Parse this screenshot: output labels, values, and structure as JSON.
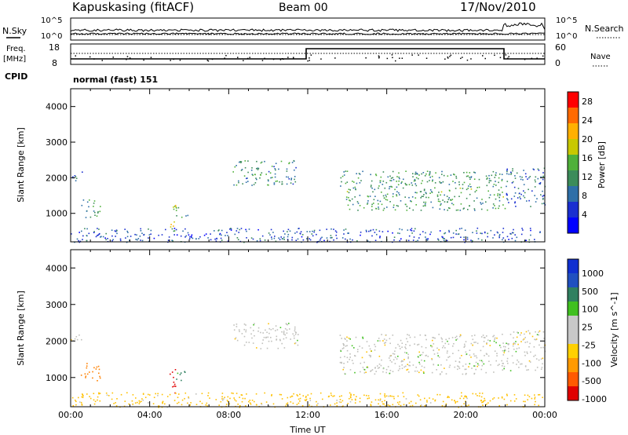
{
  "header": {
    "station": "Kapuskasing (fitACF)",
    "beam": "Beam 00",
    "date": "17/Nov/2010"
  },
  "status_panel": {
    "nsky_label": "N.Sky",
    "nsky_ticks": [
      "10^5",
      "10^0"
    ],
    "nsearch_label": "N.Search",
    "nsearch_ticks": [
      "10^5",
      "10^0"
    ],
    "freq_label": "Freq.",
    "freq_unit": "[MHz]",
    "freq_ticks": [
      "18",
      "8"
    ],
    "nave_label": "Nave",
    "nave_ticks": [
      "60",
      "0"
    ],
    "cpid_label": "CPID",
    "cpid_value": "normal (fast) 151"
  },
  "colors": {
    "power_scale": [
      "#0000ff",
      "#1a2fd0",
      "#2e6fa8",
      "#3c8c5a",
      "#4fb03a",
      "#c8c800",
      "#ffb000",
      "#ff6a00",
      "#ff0000"
    ],
    "velocity_scale": [
      "#e00000",
      "#ff5a00",
      "#ff9a00",
      "#ffd000",
      "#c8c8c8",
      "#c8c8c8",
      "#40c020",
      "#308060",
      "#2050c0",
      "#1030d0"
    ],
    "ground_scatter": "#c0c0bc"
  },
  "chart_data": [
    {
      "type": "heatmap",
      "name": "power",
      "ylabel": "Slant Range [km]",
      "yticks": [
        1000,
        2000,
        3000,
        4000
      ],
      "ylim": [
        200,
        4500
      ],
      "xlim": [
        0,
        24
      ],
      "xticks": [
        0,
        4,
        8,
        12,
        16,
        20,
        24
      ],
      "colorbar_label": "Power [dB]",
      "colorbar_ticks": [
        "4",
        "8",
        "12",
        "16",
        "20",
        "24",
        "28"
      ],
      "colorbar_range": [
        0,
        30
      ],
      "echo_regions": [
        {
          "t0": 0.0,
          "t1": 0.6,
          "r0": 1900,
          "r1": 2200,
          "level": 8
        },
        {
          "t0": 0.5,
          "t1": 1.5,
          "r0": 900,
          "r1": 1400,
          "level": 10
        },
        {
          "t0": 5.0,
          "t1": 5.3,
          "r0": 500,
          "r1": 1300,
          "level": 20
        },
        {
          "t0": 5.3,
          "t1": 5.9,
          "r0": 900,
          "r1": 1200,
          "level": 10
        },
        {
          "t0": 8.2,
          "t1": 11.5,
          "r0": 1800,
          "r1": 2500,
          "level": 10
        },
        {
          "t0": 13.6,
          "t1": 22.0,
          "r0": 1100,
          "r1": 2200,
          "level": 12
        },
        {
          "t0": 22.0,
          "t1": 24.0,
          "r0": 1200,
          "r1": 2300,
          "level": 8
        },
        {
          "t0": 0.0,
          "t1": 24.0,
          "r0": 200,
          "r1": 600,
          "level": 6
        }
      ]
    },
    {
      "type": "heatmap",
      "name": "velocity",
      "ylabel": "Slant Range [km]",
      "yticks": [
        1000,
        2000,
        3000,
        4000
      ],
      "ylim": [
        200,
        4500
      ],
      "xlim": [
        0,
        24
      ],
      "xticks": [
        0,
        4,
        8,
        12,
        16,
        20,
        24
      ],
      "xticklabels": [
        "00:00",
        "04:00",
        "08:00",
        "12:00",
        "16:00",
        "20:00",
        "00:00"
      ],
      "xlabel": "Time UT",
      "colorbar_label": "Velocity [m s^-1]",
      "colorbar_ticks": [
        "1000",
        "500",
        "100",
        "25",
        "-25",
        "-100",
        "-500",
        "-1000"
      ],
      "echo_regions": [
        {
          "t0": 0.0,
          "t1": 0.6,
          "r0": 1900,
          "r1": 2200,
          "velocity": 0
        },
        {
          "t0": 0.5,
          "t1": 1.5,
          "r0": 900,
          "r1": 1400,
          "velocity": -150
        },
        {
          "t0": 5.0,
          "t1": 5.3,
          "r0": 500,
          "r1": 1300,
          "velocity": -600
        },
        {
          "t0": 5.3,
          "t1": 5.9,
          "r0": 900,
          "r1": 1200,
          "velocity": 120
        },
        {
          "t0": 8.2,
          "t1": 11.5,
          "r0": 1800,
          "r1": 2500,
          "velocity": 0
        },
        {
          "t0": 13.6,
          "t1": 22.0,
          "r0": 1100,
          "r1": 2200,
          "velocity": 0
        },
        {
          "t0": 22.0,
          "t1": 24.0,
          "r0": 1200,
          "r1": 2300,
          "velocity": 0
        },
        {
          "t0": 0.0,
          "t1": 24.0,
          "r0": 200,
          "r1": 600,
          "velocity": -50
        }
      ]
    }
  ]
}
